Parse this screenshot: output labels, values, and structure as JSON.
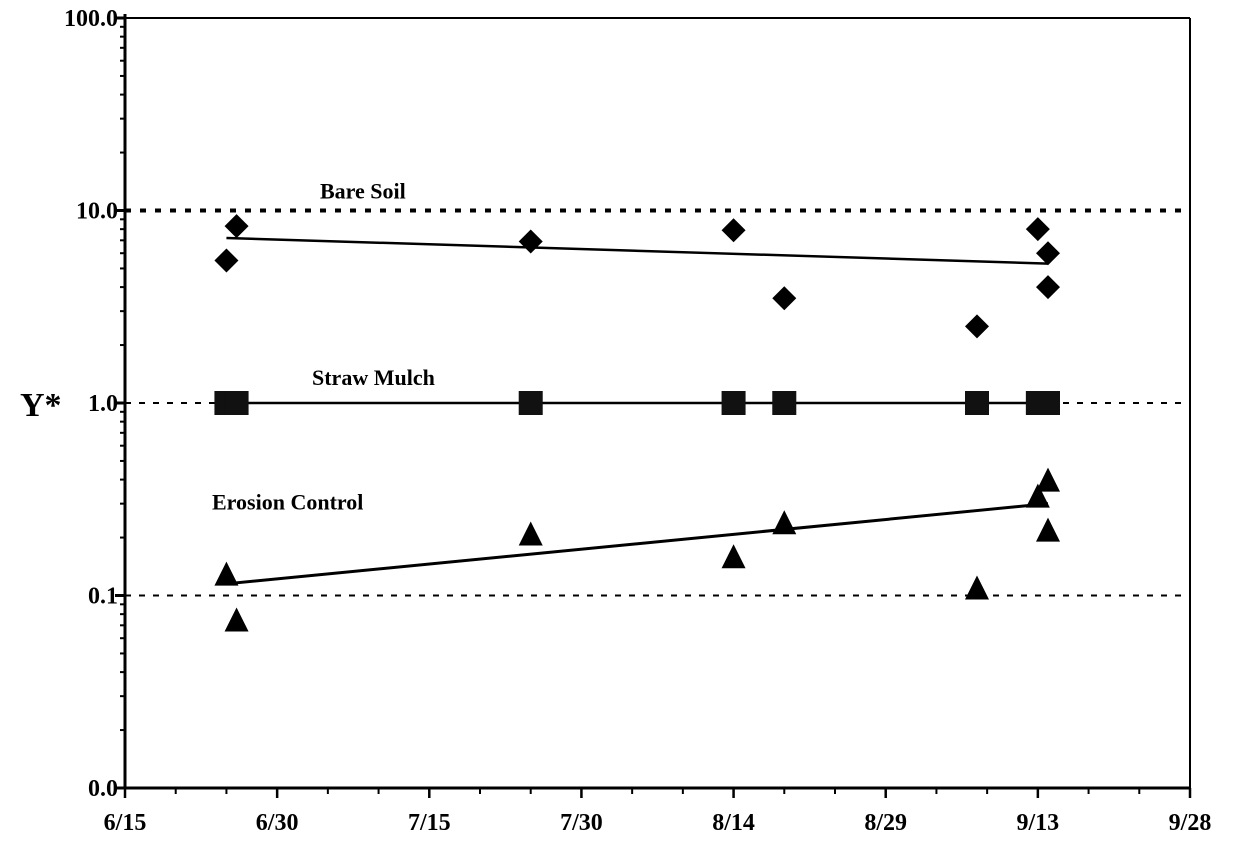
{
  "chart_data": {
    "type": "scatter",
    "title": "",
    "xlabel": "",
    "ylabel": "Y*",
    "y_scale": "log",
    "ylim": [
      0.01,
      100
    ],
    "xlim": [
      "6/15",
      "9/28"
    ],
    "x_ticks": [
      "6/15",
      "6/30",
      "7/15",
      "7/30",
      "8/14",
      "8/29",
      "9/13",
      "9/28"
    ],
    "y_ticks": [
      {
        "value": 100,
        "label": "100.0"
      },
      {
        "value": 10,
        "label": "10.0"
      },
      {
        "value": 1,
        "label": "1.0"
      },
      {
        "value": 0.1,
        "label": "0.1"
      },
      {
        "value": 0.01,
        "label": "0.0"
      }
    ],
    "reference_lines": [
      10,
      1,
      0.1
    ],
    "grid": false,
    "legend": "none",
    "series": [
      {
        "name": "Bare Soil",
        "marker": "diamond",
        "points": [
          {
            "x": "6/25",
            "y": 5.5
          },
          {
            "x": "6/26",
            "y": 8.3
          },
          {
            "x": "7/25",
            "y": 6.9
          },
          {
            "x": "8/14",
            "y": 7.9
          },
          {
            "x": "8/19",
            "y": 3.5
          },
          {
            "x": "9/7",
            "y": 2.5
          },
          {
            "x": "9/13",
            "y": 8.0
          },
          {
            "x": "9/14",
            "y": 6.0
          },
          {
            "x": "9/14",
            "y": 4.0
          }
        ],
        "trend": [
          {
            "x": "6/25",
            "y": 7.2
          },
          {
            "x": "9/14",
            "y": 5.3
          }
        ]
      },
      {
        "name": "Straw Mulch",
        "marker": "square",
        "points": [
          {
            "x": "6/25",
            "y": 1.0
          },
          {
            "x": "6/26",
            "y": 1.0
          },
          {
            "x": "7/25",
            "y": 1.0
          },
          {
            "x": "8/14",
            "y": 1.0
          },
          {
            "x": "8/19",
            "y": 1.0
          },
          {
            "x": "9/7",
            "y": 1.0
          },
          {
            "x": "9/13",
            "y": 1.0
          },
          {
            "x": "9/14",
            "y": 1.0
          }
        ],
        "trend": [
          {
            "x": "6/25",
            "y": 1.0
          },
          {
            "x": "9/14",
            "y": 1.0
          }
        ]
      },
      {
        "name": "Erosion Control",
        "marker": "triangle",
        "points": [
          {
            "x": "6/25",
            "y": 0.13
          },
          {
            "x": "6/26",
            "y": 0.075
          },
          {
            "x": "7/25",
            "y": 0.21
          },
          {
            "x": "8/14",
            "y": 0.16
          },
          {
            "x": "8/19",
            "y": 0.24
          },
          {
            "x": "9/7",
            "y": 0.11
          },
          {
            "x": "9/13",
            "y": 0.33
          },
          {
            "x": "9/14",
            "y": 0.4
          },
          {
            "x": "9/14",
            "y": 0.22
          }
        ],
        "trend": [
          {
            "x": "6/25",
            "y": 0.115
          },
          {
            "x": "9/14",
            "y": 0.3
          }
        ]
      }
    ]
  }
}
